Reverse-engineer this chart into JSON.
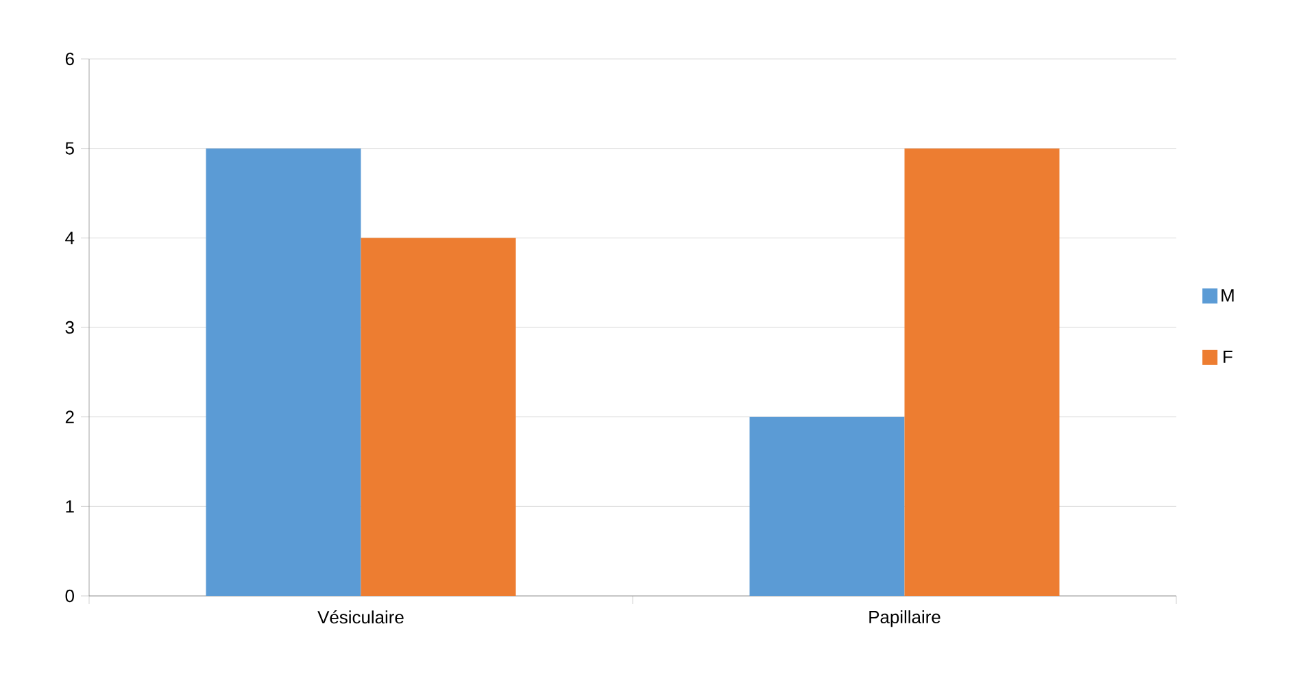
{
  "chart_data": {
    "type": "bar",
    "categories": [
      "Vésiculaire",
      "Papillaire"
    ],
    "series": [
      {
        "name": "M",
        "color": "#5b9bd5",
        "values": [
          5,
          2
        ]
      },
      {
        "name": "F",
        "color": "#ed7d31",
        "values": [
          4,
          5
        ]
      }
    ],
    "ylim": [
      0,
      6
    ],
    "yticks": [
      0,
      1,
      2,
      3,
      4,
      5,
      6
    ],
    "grid": "y",
    "legend": "right"
  }
}
